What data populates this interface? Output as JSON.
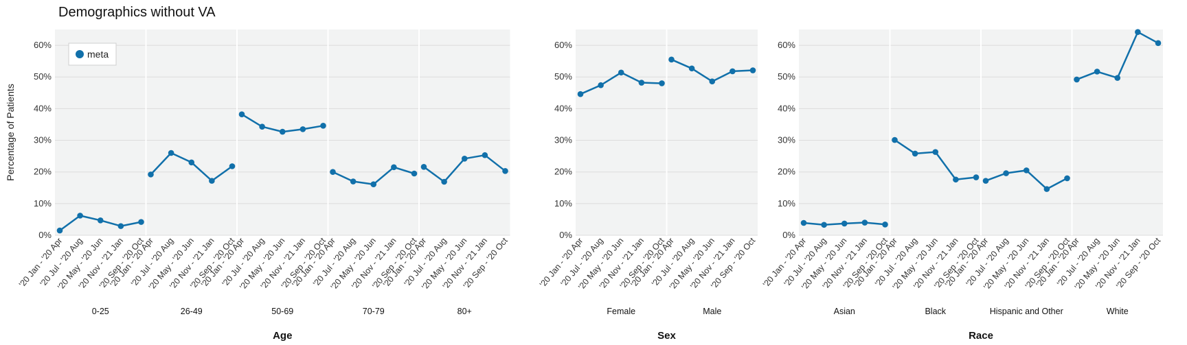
{
  "chart_data": {
    "type": "line",
    "title": "Demographics without VA",
    "ylabel": "Percentage of Patients",
    "ylim": [
      0,
      65
    ],
    "yticks": [
      "0%",
      "10%",
      "20%",
      "30%",
      "40%",
      "50%",
      "60%"
    ],
    "ytick_values": [
      0,
      10,
      20,
      30,
      40,
      50,
      60
    ],
    "x": [
      "'20 Jan - '20 Apr",
      "'20 Jul - '20 Aug",
      "'20 May - '20 Jun",
      "'20 Nov - '21 Jan",
      "'20 Sep - '20 Oct"
    ],
    "legend": {
      "label": "meta",
      "placement": "top-left"
    },
    "color": "#1170aa",
    "grid": true,
    "panels": [
      {
        "group": "Age",
        "facets": [
          {
            "label": "0-25",
            "values": [
              1.5,
              6.2,
              4.7,
              2.9,
              4.2
            ]
          },
          {
            "label": "26-49",
            "values": [
              19.2,
              26.0,
              23.0,
              17.2,
              21.8
            ]
          },
          {
            "label": "50-69",
            "values": [
              38.2,
              34.3,
              32.7,
              33.5,
              34.6
            ]
          },
          {
            "label": "70-79",
            "values": [
              20.0,
              17.0,
              16.1,
              21.5,
              19.5
            ]
          },
          {
            "label": "80+",
            "values": [
              21.6,
              16.9,
              24.2,
              25.3,
              20.3
            ]
          }
        ]
      },
      {
        "group": "Sex",
        "facets": [
          {
            "label": "Female",
            "values": [
              44.6,
              47.4,
              51.4,
              48.2,
              48.0
            ]
          },
          {
            "label": "Male",
            "values": [
              55.5,
              52.7,
              48.6,
              51.8,
              52.1
            ]
          }
        ]
      },
      {
        "group": "Race",
        "facets": [
          {
            "label": "Asian",
            "values": [
              3.9,
              3.3,
              3.7,
              4.0,
              3.4
            ]
          },
          {
            "label": "Black",
            "values": [
              30.1,
              25.8,
              26.3,
              17.6,
              18.3
            ]
          },
          {
            "label": "Hispanic and Other",
            "values": [
              17.2,
              19.6,
              20.5,
              14.6,
              18.0
            ]
          },
          {
            "label": "White",
            "values": [
              49.2,
              51.7,
              49.7,
              64.2,
              60.7
            ]
          }
        ]
      }
    ]
  }
}
